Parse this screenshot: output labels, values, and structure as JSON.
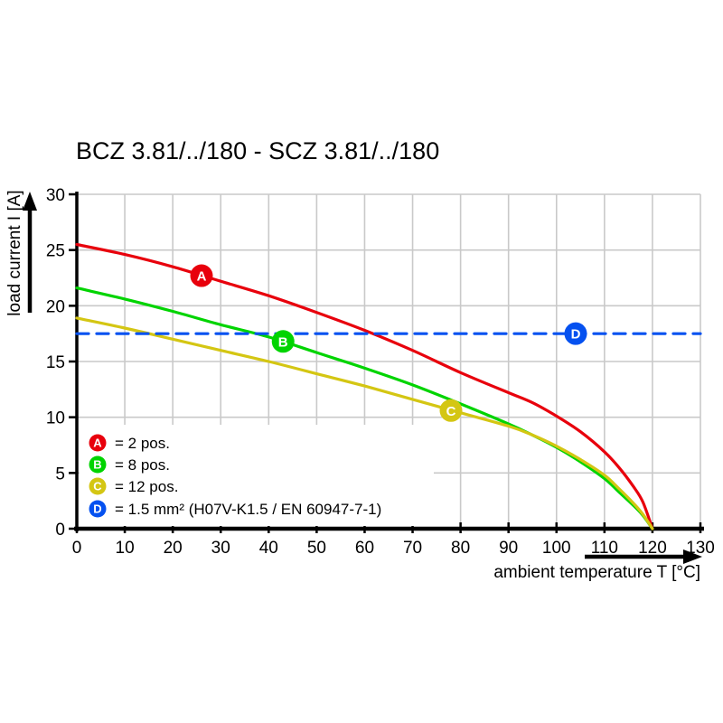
{
  "page": {
    "background": "#ffffff",
    "text_color": "#000000"
  },
  "chart_data": {
    "type": "line",
    "title": "BCZ 3.81/../180 - SCZ 3.81/../180",
    "xlabel": "ambient temperature T [°C]",
    "ylabel": "load current I [A]",
    "xlim": [
      0,
      130
    ],
    "ylim": [
      0,
      30
    ],
    "xticks": [
      0,
      10,
      20,
      30,
      40,
      50,
      60,
      70,
      80,
      90,
      100,
      110,
      120,
      130
    ],
    "yticks": [
      0,
      5,
      10,
      15,
      20,
      25,
      30
    ],
    "grid": {
      "shown": true,
      "color": "#c9c9c9",
      "x_step": 10,
      "y_step": 5
    },
    "axis_color": "#000000",
    "legend": {
      "position": "inside-bottom-left",
      "background": "#ffffff"
    },
    "reference_line_value": 17.5,
    "series": [
      {
        "id": "A",
        "label": "= 2 pos.",
        "color": "#e8000c",
        "line_style": "solid",
        "marker": {
          "x": 26,
          "y": 22.7
        },
        "points": [
          [
            0,
            25.5
          ],
          [
            10,
            24.6
          ],
          [
            20,
            23.5
          ],
          [
            30,
            22.2
          ],
          [
            40,
            20.9
          ],
          [
            50,
            19.4
          ],
          [
            60,
            17.8
          ],
          [
            70,
            16.0
          ],
          [
            80,
            14.0
          ],
          [
            90,
            12.2
          ],
          [
            95,
            11.3
          ],
          [
            100,
            10.1
          ],
          [
            105,
            8.7
          ],
          [
            110,
            6.9
          ],
          [
            113,
            5.5
          ],
          [
            116,
            3.8
          ],
          [
            118,
            2.4
          ],
          [
            120,
            0
          ]
        ]
      },
      {
        "id": "B",
        "label": "= 8 pos.",
        "color": "#00d400",
        "line_style": "solid",
        "marker": {
          "x": 43,
          "y": 16.8
        },
        "points": [
          [
            0,
            21.6
          ],
          [
            10,
            20.6
          ],
          [
            20,
            19.5
          ],
          [
            30,
            18.3
          ],
          [
            40,
            17.2
          ],
          [
            50,
            15.8
          ],
          [
            60,
            14.4
          ],
          [
            70,
            12.9
          ],
          [
            80,
            11.2
          ],
          [
            90,
            9.4
          ],
          [
            95,
            8.4
          ],
          [
            100,
            7.3
          ],
          [
            105,
            6.0
          ],
          [
            110,
            4.5
          ],
          [
            113,
            3.3
          ],
          [
            116,
            2.1
          ],
          [
            118,
            1.2
          ],
          [
            120,
            0
          ]
        ]
      },
      {
        "id": "C",
        "label": "= 12 pos.",
        "color": "#d4c613",
        "line_style": "solid",
        "marker": {
          "x": 78,
          "y": 10.6
        },
        "points": [
          [
            0,
            18.9
          ],
          [
            10,
            18.0
          ],
          [
            20,
            17.0
          ],
          [
            30,
            16.0
          ],
          [
            40,
            15.0
          ],
          [
            50,
            13.9
          ],
          [
            60,
            12.8
          ],
          [
            70,
            11.6
          ],
          [
            80,
            10.4
          ],
          [
            90,
            9.2
          ],
          [
            95,
            8.4
          ],
          [
            100,
            7.4
          ],
          [
            105,
            6.2
          ],
          [
            110,
            4.8
          ],
          [
            113,
            3.6
          ],
          [
            116,
            2.3
          ],
          [
            118,
            1.3
          ],
          [
            120,
            0
          ]
        ]
      },
      {
        "id": "D",
        "label": "= 1.5 mm² (H07V-K1.5 / EN 60947-7-1)",
        "color": "#0551f0",
        "line_style": "dashed",
        "marker": {
          "x": 104,
          "y": 17.5
        },
        "points": [
          [
            0,
            17.5
          ],
          [
            130,
            17.5
          ]
        ]
      }
    ]
  }
}
